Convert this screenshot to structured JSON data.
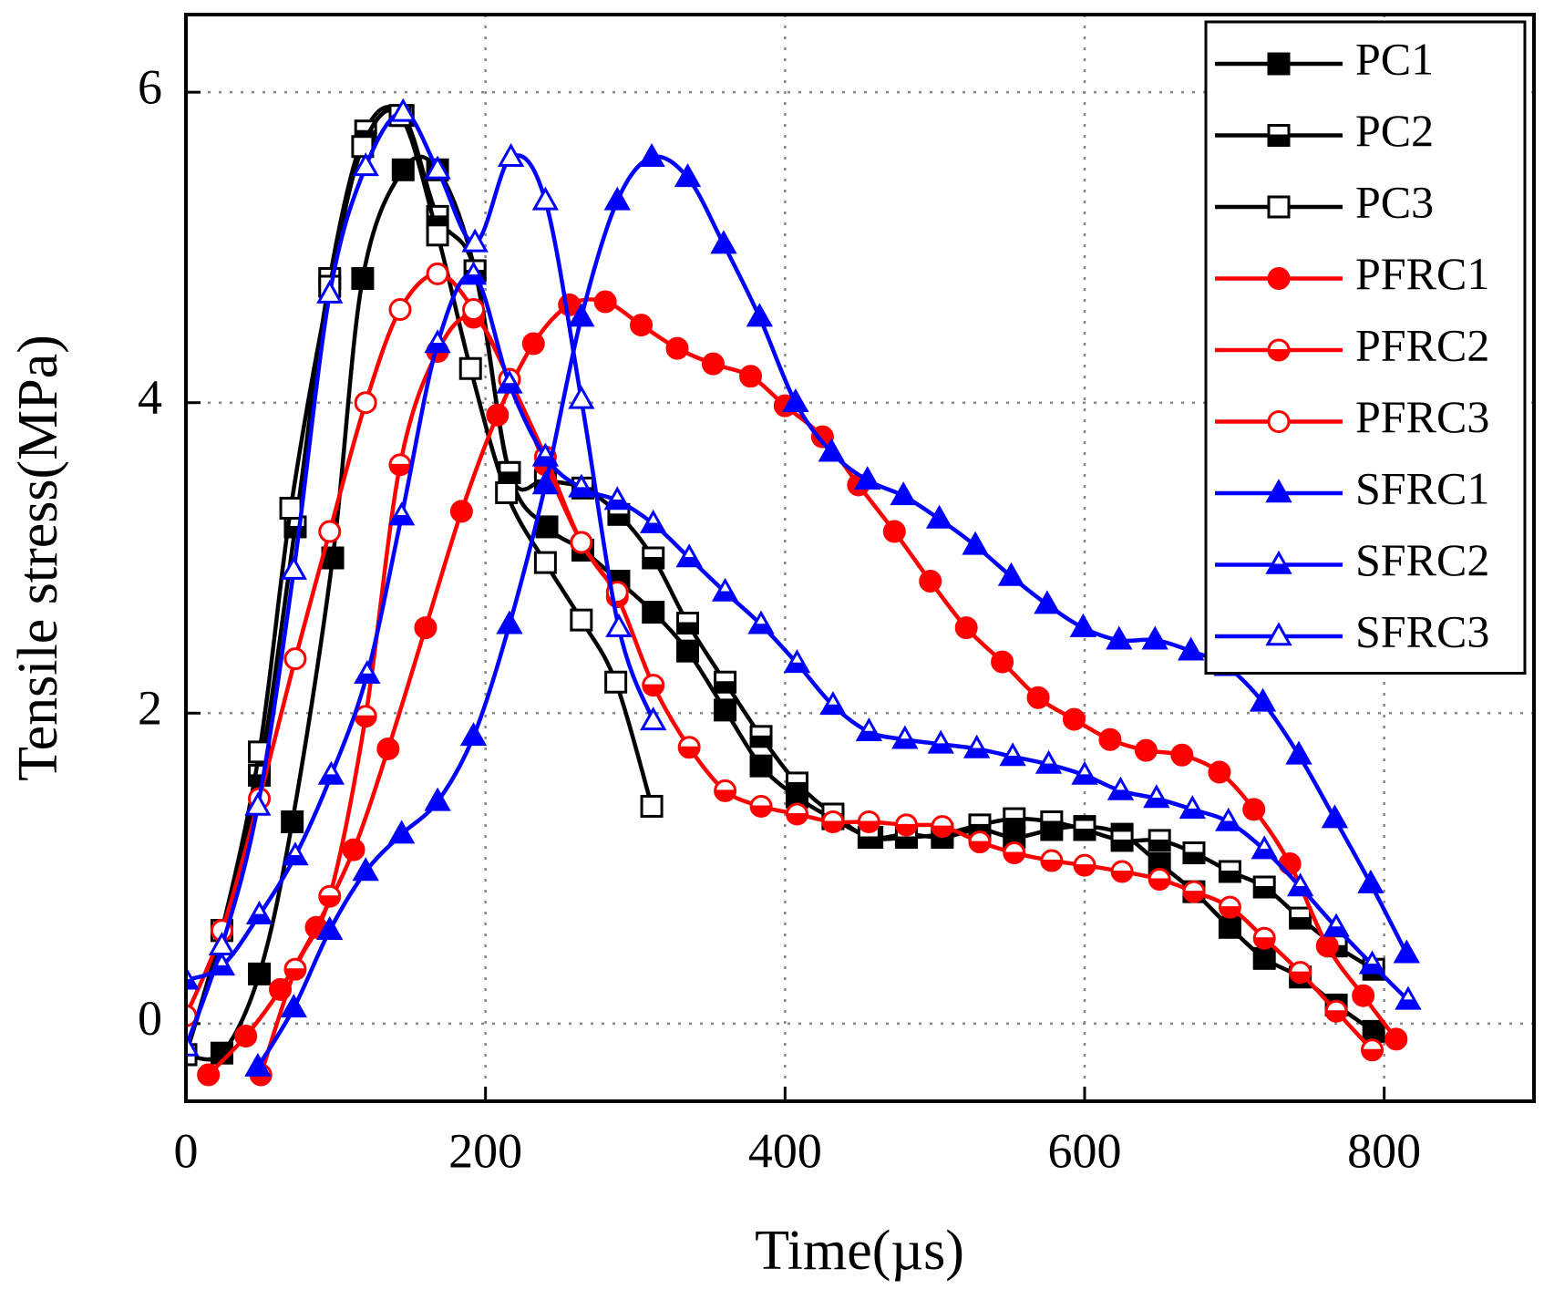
{
  "chart_data": {
    "type": "line",
    "xlabel": "Time(µs)",
    "ylabel": "Tensile stress(MPa)",
    "xlim": [
      0,
      900
    ],
    "ylim": [
      -0.5,
      6.5
    ],
    "xticks": [
      0,
      200,
      400,
      600,
      800
    ],
    "yticks": [
      0,
      2,
      4,
      6
    ],
    "grid": true,
    "legend": "upper right",
    "series": [
      {
        "name": "PC1",
        "color": "#000000",
        "marker": "square",
        "fill": "full",
        "x": [
          0,
          24,
          49,
          71,
          98,
          118,
          145,
          168,
          193,
          216,
          241,
          265,
          289,
          312,
          335,
          360,
          384,
          408,
          432,
          458,
          481,
          505,
          530,
          553,
          578,
          600,
          625,
          650,
          673,
          697,
          720,
          744,
          768,
          793
        ],
        "values": [
          -0.2,
          -0.19,
          0.32,
          1.3,
          3.0,
          4.8,
          5.5,
          5.5,
          4.85,
          3.55,
          3.2,
          3.05,
          2.85,
          2.65,
          2.4,
          2.02,
          1.66,
          1.46,
          1.32,
          1.2,
          1.22,
          1.2,
          1.25,
          1.2,
          1.25,
          1.27,
          1.22,
          1.03,
          0.85,
          0.62,
          0.42,
          0.3,
          0.12,
          -0.05
        ]
      },
      {
        "name": "PC2",
        "color": "#000000",
        "marker": "square",
        "fill": "half",
        "x": [
          0,
          24,
          49,
          73,
          96,
          120,
          145,
          168,
          193,
          216,
          240,
          265,
          289,
          312,
          335,
          360,
          384,
          408,
          432,
          456,
          481,
          505,
          530,
          553,
          578,
          600,
          625,
          650,
          673,
          697,
          720,
          744,
          768,
          793
        ],
        "values": [
          -0.2,
          0.6,
          1.6,
          3.2,
          4.8,
          5.75,
          5.85,
          5.2,
          4.85,
          3.55,
          3.5,
          3.45,
          3.28,
          3.0,
          2.58,
          2.2,
          1.85,
          1.55,
          1.35,
          1.2,
          1.2,
          1.22,
          1.28,
          1.32,
          1.3,
          1.25,
          1.18,
          1.18,
          1.1,
          0.98,
          0.88,
          0.68,
          0.5,
          0.35
        ]
      },
      {
        "name": "PC3",
        "color": "#000000",
        "marker": "square",
        "fill": "open",
        "x": [
          0,
          24,
          49,
          70,
          96,
          118,
          143,
          168,
          190,
          214,
          240,
          264,
          287,
          311
        ],
        "values": [
          -0.2,
          0.6,
          1.75,
          3.32,
          4.75,
          5.65,
          5.85,
          5.08,
          4.22,
          3.42,
          2.97,
          2.6,
          2.2,
          1.4
        ]
      },
      {
        "name": "PFRC1",
        "color": "#ff0000",
        "marker": "circle",
        "fill": "full",
        "x": [
          15,
          40,
          63,
          87,
          112,
          135,
          160,
          184,
          208,
          232,
          256,
          280,
          304,
          328,
          352,
          377,
          400,
          425,
          449,
          473,
          497,
          521,
          545,
          569,
          593,
          617,
          641,
          665,
          690,
          713,
          737,
          762,
          786,
          808
        ],
        "values": [
          -0.33,
          -0.08,
          0.22,
          0.62,
          1.12,
          1.77,
          2.55,
          3.3,
          3.92,
          4.38,
          4.63,
          4.65,
          4.5,
          4.35,
          4.25,
          4.17,
          3.98,
          3.78,
          3.47,
          3.17,
          2.85,
          2.55,
          2.33,
          2.1,
          1.96,
          1.83,
          1.76,
          1.73,
          1.62,
          1.38,
          1.03,
          0.5,
          0.18,
          -0.1
        ]
      },
      {
        "name": "PFRC2",
        "color": "#ff0000",
        "marker": "circle",
        "fill": "half",
        "x": [
          50,
          73,
          96,
          120,
          143,
          168,
          192,
          216,
          240,
          264,
          288,
          312,
          336,
          360,
          384,
          408,
          432,
          456,
          481,
          505,
          530,
          553,
          578,
          600,
          625,
          650,
          673,
          697,
          720,
          744,
          768,
          792
        ],
        "values": [
          -0.33,
          0.35,
          0.82,
          1.98,
          3.6,
          4.33,
          4.55,
          4.15,
          3.6,
          3.1,
          2.75,
          2.18,
          1.78,
          1.5,
          1.4,
          1.35,
          1.3,
          1.3,
          1.28,
          1.27,
          1.17,
          1.1,
          1.05,
          1.02,
          0.98,
          0.93,
          0.85,
          0.75,
          0.55,
          0.33,
          0.08,
          -0.17
        ]
      },
      {
        "name": "PFRC3",
        "color": "#ff0000",
        "marker": "circle",
        "fill": "open",
        "x": [
          0,
          24,
          49,
          73,
          96,
          120,
          143,
          168,
          192,
          216,
          240,
          264,
          288
        ],
        "values": [
          0.05,
          0.6,
          1.45,
          2.35,
          3.17,
          4.0,
          4.6,
          4.83,
          4.6,
          4.15,
          3.65,
          3.1,
          2.78
        ]
      },
      {
        "name": "SFRC1",
        "color": "#0000ff",
        "marker": "triangle",
        "fill": "full",
        "x": [
          48,
          72,
          96,
          120,
          144,
          168,
          192,
          216,
          240,
          264,
          288,
          311,
          335,
          359,
          383,
          407,
          431,
          455,
          479,
          503,
          527,
          551,
          575,
          599,
          623,
          647,
          671,
          695,
          719,
          743,
          767,
          791,
          815
        ],
        "values": [
          -0.28,
          0.1,
          0.6,
          0.98,
          1.22,
          1.43,
          1.85,
          2.57,
          3.47,
          4.55,
          5.3,
          5.58,
          5.45,
          5.02,
          4.55,
          4.0,
          3.68,
          3.5,
          3.4,
          3.25,
          3.08,
          2.88,
          2.7,
          2.55,
          2.47,
          2.47,
          2.4,
          2.3,
          2.07,
          1.73,
          1.32,
          0.9,
          0.45
        ]
      },
      {
        "name": "SFRC2",
        "color": "#0000ff",
        "marker": "triangle",
        "fill": "half",
        "x": [
          0,
          24,
          49,
          73,
          97,
          121,
          144,
          168,
          192,
          216,
          240,
          264,
          288,
          312,
          336,
          360,
          384,
          408,
          432,
          456,
          480,
          504,
          528,
          552,
          576,
          600,
          624,
          648,
          672,
          696,
          720,
          744,
          768,
          792,
          816
        ],
        "values": [
          0.28,
          0.37,
          0.7,
          1.08,
          1.6,
          2.25,
          3.27,
          4.38,
          4.82,
          4.12,
          3.65,
          3.45,
          3.37,
          3.22,
          3.0,
          2.78,
          2.57,
          2.32,
          2.05,
          1.88,
          1.83,
          1.8,
          1.77,
          1.72,
          1.67,
          1.6,
          1.5,
          1.45,
          1.38,
          1.3,
          1.12,
          0.88,
          0.62,
          0.38,
          0.15
        ]
      },
      {
        "name": "SFRC3",
        "color": "#0000ff",
        "marker": "triangle",
        "fill": "open",
        "x": [
          0,
          24,
          48,
          72,
          96,
          120,
          145,
          168,
          193,
          217,
          240,
          264,
          289,
          312
        ],
        "values": [
          -0.15,
          0.5,
          1.4,
          2.92,
          4.7,
          5.52,
          5.87,
          5.5,
          5.03,
          5.58,
          5.3,
          4.02,
          2.55,
          1.95
        ]
      }
    ]
  }
}
